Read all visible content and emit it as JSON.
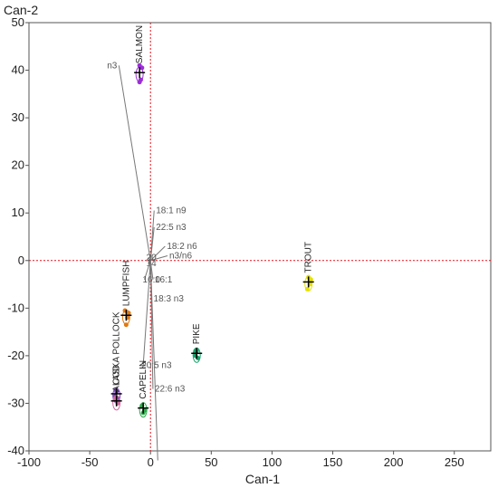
{
  "chart_data": {
    "type": "scatter",
    "title": "",
    "xlabel": "Can-1",
    "ylabel": "Can-2",
    "xlim": [
      -100,
      280
    ],
    "ylim": [
      -40,
      50
    ],
    "xticks": [
      -100,
      -50,
      0,
      50,
      100,
      150,
      200,
      250
    ],
    "yticks": [
      -40,
      -30,
      -20,
      -10,
      0,
      10,
      20,
      30,
      40,
      50
    ],
    "xtick_labels": [
      "-100",
      "-50",
      "0",
      "50",
      "100",
      "150",
      "200",
      "250"
    ],
    "ytick_labels": [
      "-40",
      "-30",
      "-20",
      "-10",
      "0",
      "10",
      "20",
      "30",
      "40",
      "50"
    ],
    "reference_lines": {
      "x": 0,
      "y": 0,
      "color": "#e8101a",
      "style": "dotted"
    },
    "grid": false,
    "groups": [
      {
        "name": "SALMON",
        "color": "#9b2fd6",
        "mean": [
          -9,
          39.5
        ],
        "points": [
          [
            -8,
            38
          ],
          [
            -9,
            37.5
          ],
          [
            -7,
            40.5
          ],
          [
            -9,
            41
          ]
        ]
      },
      {
        "name": "TROUT",
        "color": "#e4e000",
        "mean": [
          130,
          -4.5
        ],
        "points": [
          [
            131,
            -5
          ],
          [
            129,
            -6
          ],
          [
            132,
            -4
          ],
          [
            130,
            -3.5
          ]
        ]
      },
      {
        "name": "LUMPFISH",
        "color": "#e07a10",
        "mean": [
          -20,
          -11.5
        ],
        "points": [
          [
            -19,
            -12
          ],
          [
            -21,
            -10.5
          ],
          [
            -20,
            -13.5
          ],
          [
            -18,
            -11
          ]
        ]
      },
      {
        "name": "PIKE",
        "color": "#16a06a",
        "mean": [
          38,
          -19.5
        ],
        "points": [
          [
            37,
            -20
          ],
          [
            38,
            -19
          ],
          [
            39,
            -20.5
          ],
          [
            37,
            -19
          ]
        ]
      },
      {
        "name": "COD",
        "color": "#7a40c0",
        "mean": [
          -28,
          -28
        ],
        "points": [
          [
            -28,
            -27.5
          ],
          [
            -29,
            -28.5
          ],
          [
            -27,
            -29
          ]
        ]
      },
      {
        "name": "ALASKA POLLOCK",
        "color": "#d06aa0",
        "mean": [
          -28,
          -29.5
        ],
        "points": [
          [
            -28,
            -29.5
          ],
          [
            -27,
            -30
          ],
          [
            -29,
            -29
          ]
        ]
      },
      {
        "name": "CAPELIN",
        "color": "#2ea84a",
        "mean": [
          -6,
          -31
        ],
        "points": [
          [
            -6,
            -32
          ],
          [
            -5,
            -31.5
          ],
          [
            -7,
            -30.5
          ]
        ]
      }
    ],
    "biplot_vectors": [
      {
        "label": "n3",
        "end": [
          -26,
          41
        ]
      },
      {
        "label": "18:1 n9",
        "end": [
          3,
          10.5
        ]
      },
      {
        "label": "22:5 n3",
        "end": [
          3,
          7
        ]
      },
      {
        "label": "18:2 n6",
        "end": [
          12,
          3
        ]
      },
      {
        "label": "n3/n6",
        "end": [
          14,
          1
        ]
      },
      {
        "label": "20",
        "end": [
          -2,
          0.6
        ]
      },
      {
        "label": "14",
        "end": [
          -2,
          -0.6
        ]
      },
      {
        "label": "16:0",
        "end": [
          -5,
          -4
        ]
      },
      {
        "label": "16:1",
        "end": [
          2,
          -4
        ]
      },
      {
        "label": "18:3 n3",
        "end": [
          1,
          -8
        ]
      },
      {
        "label": "20:5 n3",
        "end": [
          -6,
          -22
        ]
      },
      {
        "label": "22:6 n3",
        "end": [
          2,
          -27
        ]
      },
      {
        "label": "",
        "end": [
          6,
          -42
        ]
      }
    ]
  }
}
